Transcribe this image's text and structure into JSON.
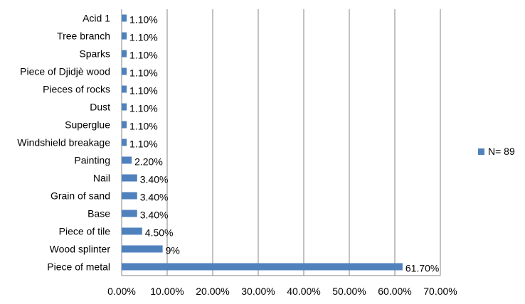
{
  "chart_data": {
    "type": "bar",
    "orientation": "horizontal",
    "categories": [
      "Acid 1",
      "Tree branch",
      "Sparks",
      "Piece of Djidjè wood",
      "Pieces of rocks",
      "Dust",
      "Superglue",
      "Windshield breakage",
      "Painting",
      "Nail",
      "Grain of sand",
      "Base",
      "Piece of tile",
      "Wood splinter",
      "Piece of metal"
    ],
    "values": [
      1.1,
      1.1,
      1.1,
      1.1,
      1.1,
      1.1,
      1.1,
      1.1,
      2.2,
      3.4,
      3.4,
      3.4,
      4.5,
      9,
      61.7
    ],
    "data_labels": [
      "1.10%",
      "1.10%",
      "1.10%",
      "1.10%",
      "1.10%",
      "1.10%",
      "1.10%",
      "1.10%",
      "2.20%",
      "3.40%",
      "3.40%",
      "3.40%",
      "4.50%",
      "9%",
      "61.70%"
    ],
    "series": [
      {
        "name": "N= 89",
        "color": "#4F81BD"
      }
    ],
    "xlim": [
      0,
      70
    ],
    "x_ticks": [
      0,
      10,
      20,
      30,
      40,
      50,
      60,
      70
    ],
    "x_tick_labels": [
      "0.00%",
      "10.00%",
      "20.00%",
      "30.00%",
      "40.00%",
      "50.00%",
      "60.00%",
      "70.00%"
    ],
    "grid": "vertical",
    "legend_position": "right",
    "title": "",
    "xlabel": "",
    "ylabel": ""
  }
}
